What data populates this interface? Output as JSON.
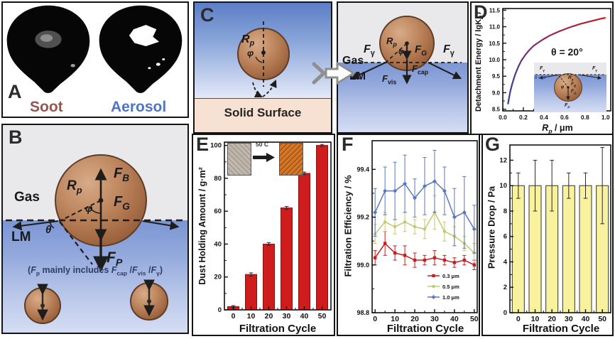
{
  "labels": {
    "gas": "Gas",
    "lm": "LM",
    "phi": "φ",
    "theta": "θ",
    "r_p": [
      {
        "t": "R",
        "i": 1
      },
      {
        "t": "p",
        "sub": 1,
        "i": 1
      }
    ],
    "f_b": [
      {
        "t": "F",
        "i": 1
      },
      {
        "t": "B",
        "sub": 1,
        "i": 1
      }
    ],
    "f_g": [
      {
        "t": "F",
        "i": 1
      },
      {
        "t": "G",
        "sub": 1,
        "i": 1
      }
    ],
    "f_p": [
      {
        "t": "F",
        "i": 1
      },
      {
        "t": "P",
        "sub": 1,
        "i": 1
      }
    ],
    "f_gamma": [
      {
        "t": "F",
        "i": 1
      },
      {
        "t": "γ",
        "sub": 1
      }
    ],
    "f_cap": [
      {
        "t": "F",
        "i": 1
      },
      {
        "t": "cap",
        "sub": 1
      }
    ],
    "f_vis": [
      {
        "t": "F",
        "i": 1
      },
      {
        "t": "vis",
        "sub": 1
      }
    ]
  },
  "panels": {
    "A": {
      "label": "A",
      "soot": "Soot",
      "aerosol": "Aerosol"
    },
    "B": {
      "label": "B",
      "note": [
        {
          "t": "("
        },
        {
          "t": "F",
          "i": 1
        },
        {
          "t": "p",
          "sub": 1
        },
        {
          "t": " mainly includes "
        },
        {
          "t": "F",
          "i": 1
        },
        {
          "t": "cap",
          "sub": 1
        },
        {
          "t": " /"
        },
        {
          "t": "F",
          "i": 1
        },
        {
          "t": "vis",
          "sub": 1
        },
        {
          "t": " /"
        },
        {
          "t": "F",
          "i": 1
        },
        {
          "t": "γ",
          "sub": 1
        },
        {
          "t": ")"
        }
      ]
    },
    "C": {
      "label": "C",
      "solid_surface": "Solid Surface"
    },
    "D": {
      "label": "D",
      "annotation": "θ = 20°",
      "inset_theta": "θ = 20°"
    },
    "E": {
      "label": "E",
      "inset_caption": "50 C"
    },
    "F": {
      "label": "F"
    },
    "G": {
      "label": "G"
    }
  },
  "colors": {
    "soot_label": "#96564e",
    "aerosol_label": "#4f74c7",
    "note_text": "#2e3e66",
    "liquid_metal": "#7c96d4",
    "gas_bg": "#e9e9ec",
    "solid_surface": "#f7e1d3",
    "dust_bar": "#cf1d1e",
    "pressure_bar": "#f8f19e",
    "series_03": "#c02020",
    "series_05": "#c2c96b",
    "series_10": "#5b76bb"
  },
  "chart_data": [
    {
      "id": "D",
      "type": "line",
      "ylabel_rich": [
        {
          "t": "Detachment Energy / lgK"
        },
        {
          "t": "B",
          "sub": 1,
          "i": 1
        },
        {
          "t": "T",
          "i": 1
        }
      ],
      "xlabel_rich": [
        {
          "t": "R",
          "i": 1
        },
        {
          "t": "p",
          "sub": 1,
          "i": 1
        },
        {
          "t": " / μm"
        }
      ],
      "xlim": [
        0,
        1.05
      ],
      "ylim": [
        8.45,
        11.55
      ],
      "xticks": {
        "values": [
          0,
          0.2,
          0.4,
          0.6,
          0.8,
          1.0
        ],
        "labels": [
          "0.0",
          "0.2",
          "0.4",
          "0.6",
          "0.8",
          "1.0"
        ]
      },
      "yticks": {
        "values": [
          8.5,
          9.0,
          9.5,
          10.0,
          10.5,
          11.0,
          11.5
        ],
        "labels": [
          "8.5",
          "9.0",
          "9.5",
          "10.0",
          "10.5",
          "11.0",
          "11.5"
        ]
      },
      "annotation": "θ = 20°",
      "series": [
        {
          "name": "detachment-energy",
          "color_gradient": [
            "#2f3f9e",
            "#8a2a66",
            "#c41d1d"
          ],
          "x": [
            0.05,
            0.07,
            0.09,
            0.12,
            0.15,
            0.18,
            0.22,
            0.26,
            0.3,
            0.35,
            0.4,
            0.45,
            0.5,
            0.55,
            0.6,
            0.65,
            0.7,
            0.75,
            0.8,
            0.85,
            0.9,
            0.95,
            1.0
          ],
          "y": [
            8.65,
            9.0,
            9.25,
            9.55,
            9.78,
            9.97,
            10.15,
            10.3,
            10.42,
            10.53,
            10.63,
            10.72,
            10.79,
            10.86,
            10.92,
            10.98,
            11.03,
            11.08,
            11.12,
            11.16,
            11.2,
            11.24,
            11.27
          ]
        }
      ]
    },
    {
      "id": "E",
      "type": "bar",
      "title": "",
      "xlabel": "Filtration Cycle",
      "ylabel": "Dust Holding Amount / g·m²",
      "categories": [
        "0",
        "10",
        "20",
        "30",
        "40",
        "50"
      ],
      "values": [
        2,
        21.5,
        40,
        62,
        83,
        100
      ],
      "errors": [
        0.6,
        1.0,
        0.9,
        0.9,
        0.8,
        0.6
      ],
      "bar_color": "#cf1d1e",
      "bar_edge": "#8d1010",
      "ylim": [
        0,
        102
      ],
      "yticks": {
        "values": [
          0,
          20,
          40,
          60,
          80,
          100
        ],
        "labels": [
          "0",
          "20",
          "40",
          "60",
          "80",
          "100"
        ]
      }
    },
    {
      "id": "F",
      "type": "line",
      "xlabel": "Filtration Cycle",
      "ylabel": "Filtration Efficiency / %",
      "x": [
        0,
        5,
        10,
        15,
        20,
        25,
        30,
        35,
        40,
        45,
        50
      ],
      "xlim": [
        -1.5,
        51.5
      ],
      "ylim": [
        98.8,
        99.52
      ],
      "xticks": {
        "values": [
          0,
          10,
          20,
          30,
          40,
          50
        ],
        "labels": [
          "0",
          "10",
          "20",
          "30",
          "40",
          "50"
        ]
      },
      "yticks": {
        "values": [
          98.8,
          99.0,
          99.2,
          99.4
        ],
        "labels": [
          "98.8",
          "99.0",
          "99.2",
          "99.4"
        ]
      },
      "legend": true,
      "legend_position": "bottom-right",
      "series": [
        {
          "name": "0.3 μm",
          "color": "#c02020",
          "marker": "square",
          "values": [
            99.03,
            99.09,
            99.05,
            99.04,
            99.02,
            99.02,
            99.03,
            99.02,
            99.01,
            99.02,
            99.0
          ],
          "errors": [
            0.03,
            0.05,
            0.03,
            0.04,
            0.03,
            0.02,
            0.03,
            0.02,
            0.02,
            0.02,
            0.02
          ]
        },
        {
          "name": "0.5 μm",
          "color": "#c2c96b",
          "marker": "circle",
          "values": [
            99.13,
            99.18,
            99.16,
            99.18,
            99.16,
            99.15,
            99.22,
            99.14,
            99.12,
            99.09,
            99.05
          ],
          "errors": [
            0.04,
            0.04,
            0.03,
            0.04,
            0.03,
            0.04,
            0.07,
            0.04,
            0.04,
            0.03,
            0.04
          ]
        },
        {
          "name": "1.0 μm",
          "color": "#5b76bb",
          "marker": "diamond",
          "values": [
            99.22,
            99.31,
            99.31,
            99.34,
            99.28,
            99.33,
            99.35,
            99.31,
            99.2,
            99.22,
            99.15
          ],
          "errors": [
            0.1,
            0.1,
            0.12,
            0.12,
            0.08,
            0.12,
            0.13,
            0.1,
            0.12,
            0.15,
            0.1
          ]
        }
      ]
    },
    {
      "id": "G",
      "type": "bar",
      "xlabel": "Filtration Cycle",
      "ylabel": "Pressure Drop / Pa",
      "categories": [
        "0",
        "10",
        "20",
        "30",
        "40",
        "50"
      ],
      "values": [
        10,
        10,
        10,
        10,
        10,
        10
      ],
      "errors": [
        1,
        2,
        2,
        1,
        1,
        3
      ],
      "bar_color": "#f8f19e",
      "bar_edge": "#333333",
      "ylim": [
        0,
        13.2
      ],
      "yticks": {
        "values": [
          0,
          2,
          4,
          6,
          8,
          10,
          12
        ],
        "labels": [
          "0",
          "2",
          "4",
          "6",
          "8",
          "10",
          "12"
        ]
      }
    }
  ]
}
